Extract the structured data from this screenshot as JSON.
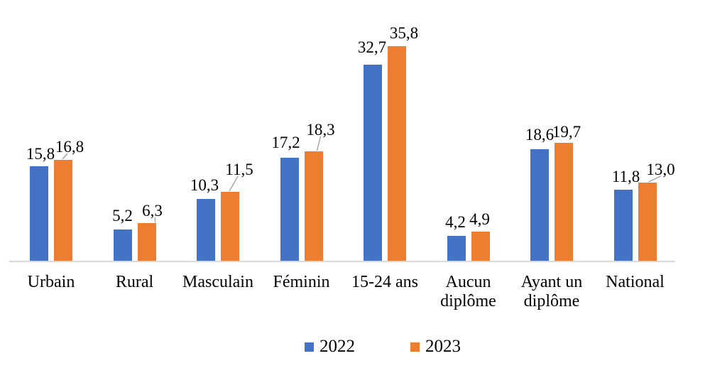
{
  "chart_data": {
    "type": "bar",
    "title": "",
    "xlabel": "",
    "ylabel": "",
    "categories": [
      "Urbain",
      "Rural",
      "Masculain",
      "Féminin",
      "15-24 ans",
      "Aucun\ndiplôme",
      "Ayant un\ndiplôme",
      "National"
    ],
    "series": [
      {
        "name": "2022",
        "color": "#4472C4",
        "values": [
          15.8,
          5.2,
          10.3,
          17.2,
          32.7,
          4.2,
          18.6,
          11.8
        ]
      },
      {
        "name": "2023",
        "color": "#ED7D31",
        "values": [
          16.8,
          6.3,
          11.5,
          18.3,
          35.8,
          4.9,
          19.7,
          13.0
        ]
      }
    ],
    "value_labels": {
      "2022": [
        "15,8",
        "5,2",
        "10,3",
        "17,2",
        "32,7",
        "4,2",
        "18,6",
        "11,8"
      ],
      "2023": [
        "16,8",
        "6,3",
        "11,5",
        "18,3",
        "35,8",
        "4,9",
        "19,7",
        "13,0"
      ]
    },
    "decimal_separator": ",",
    "ylim": [
      0,
      38
    ],
    "grid": false,
    "y_axis_visible": false,
    "legend_position": "bottom",
    "axis_line_color": "#D9D9D9",
    "leader_line_color": "#A6A6A6",
    "text_color": "#000000",
    "callout_2023_indices": [
      0,
      1,
      2,
      3,
      7
    ]
  }
}
